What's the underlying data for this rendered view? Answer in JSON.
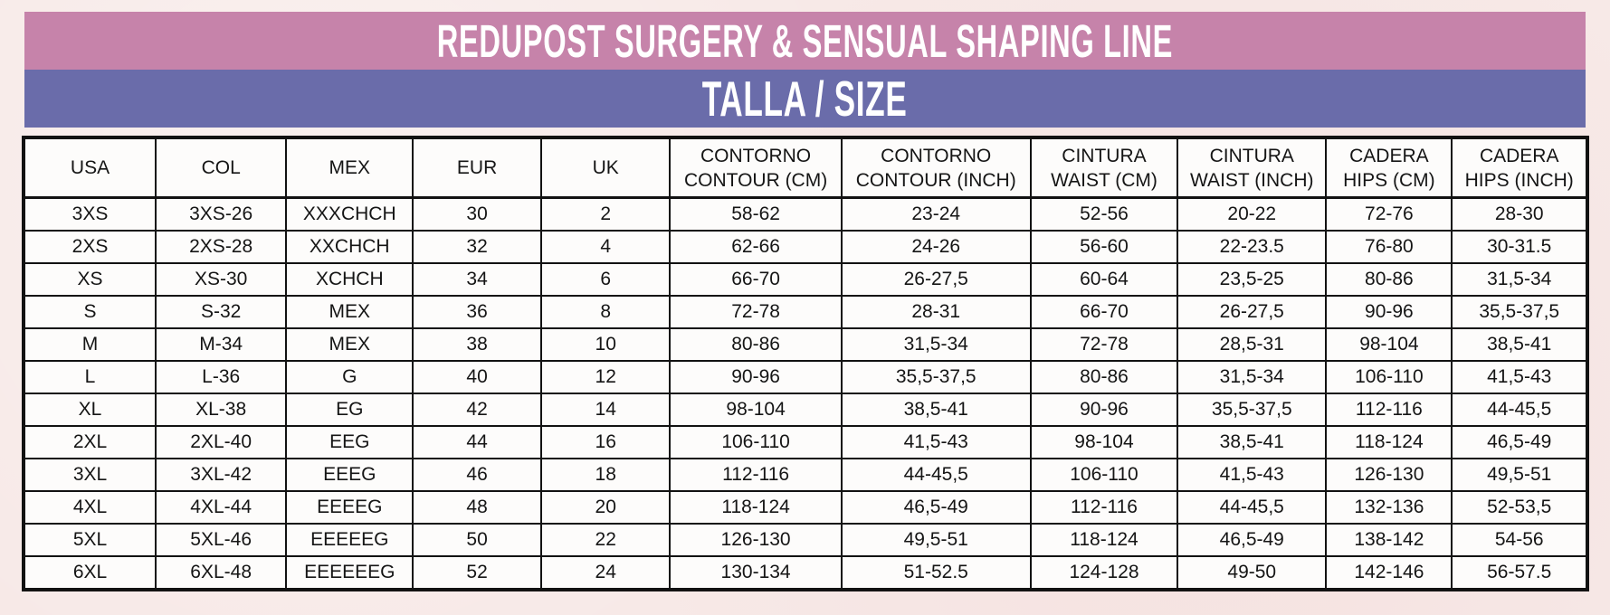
{
  "banner": {
    "title": "REDUPOST SURGERY & SENSUAL SHAPING LINE",
    "subtitle": "TALLA / SIZE"
  },
  "colors": {
    "title_band": "#c683aa",
    "subtitle_band": "#6a6caa",
    "banner_text": "#ffffff",
    "page_background": "#f7e9e7",
    "table_border": "#121212",
    "cell_background": "#fdfcfb"
  },
  "table": {
    "headers": [
      {
        "lines": [
          "USA"
        ]
      },
      {
        "lines": [
          "COL"
        ]
      },
      {
        "lines": [
          "MEX"
        ]
      },
      {
        "lines": [
          "EUR"
        ]
      },
      {
        "lines": [
          "UK"
        ]
      },
      {
        "lines": [
          "CONTORNO",
          "CONTOUR (CM)"
        ]
      },
      {
        "lines": [
          "CONTORNO",
          "CONTOUR (INCH)"
        ]
      },
      {
        "lines": [
          "CINTURA",
          "WAIST (CM)"
        ]
      },
      {
        "lines": [
          "CINTURA",
          "WAIST (INCH)"
        ]
      },
      {
        "lines": [
          "CADERA",
          "HIPS (CM)"
        ]
      },
      {
        "lines": [
          "CADERA",
          "HIPS (INCH)"
        ]
      }
    ],
    "rows": [
      [
        "3XS",
        "3XS-26",
        "XXXCHCH",
        "30",
        "2",
        "58-62",
        "23-24",
        "52-56",
        "20-22",
        "72-76",
        "28-30"
      ],
      [
        "2XS",
        "2XS-28",
        "XXCHCH",
        "32",
        "4",
        "62-66",
        "24-26",
        "56-60",
        "22-23.5",
        "76-80",
        "30-31.5"
      ],
      [
        "XS",
        "XS-30",
        "XCHCH",
        "34",
        "6",
        "66-70",
        "26-27,5",
        "60-64",
        "23,5-25",
        "80-86",
        "31,5-34"
      ],
      [
        "S",
        "S-32",
        "MEX",
        "36",
        "8",
        "72-78",
        "28-31",
        "66-70",
        "26-27,5",
        "90-96",
        "35,5-37,5"
      ],
      [
        "M",
        "M-34",
        "MEX",
        "38",
        "10",
        "80-86",
        "31,5-34",
        "72-78",
        "28,5-31",
        "98-104",
        "38,5-41"
      ],
      [
        "L",
        "L-36",
        "G",
        "40",
        "12",
        "90-96",
        "35,5-37,5",
        "80-86",
        "31,5-34",
        "106-110",
        "41,5-43"
      ],
      [
        "XL",
        "XL-38",
        "EG",
        "42",
        "14",
        "98-104",
        "38,5-41",
        "90-96",
        "35,5-37,5",
        "112-116",
        "44-45,5"
      ],
      [
        "2XL",
        "2XL-40",
        "EEG",
        "44",
        "16",
        "106-110",
        "41,5-43",
        "98-104",
        "38,5-41",
        "118-124",
        "46,5-49"
      ],
      [
        "3XL",
        "3XL-42",
        "EEEG",
        "46",
        "18",
        "112-116",
        "44-45,5",
        "106-110",
        "41,5-43",
        "126-130",
        "49,5-51"
      ],
      [
        "4XL",
        "4XL-44",
        "EEEEG",
        "48",
        "20",
        "118-124",
        "46,5-49",
        "112-116",
        "44-45,5",
        "132-136",
        "52-53,5"
      ],
      [
        "5XL",
        "5XL-46",
        "EEEEEG",
        "50",
        "22",
        "126-130",
        "49,5-51",
        "118-124",
        "46,5-49",
        "138-142",
        "54-56"
      ],
      [
        "6XL",
        "6XL-48",
        "EEEEEEG",
        "52",
        "24",
        "130-134",
        "51-52.5",
        "124-128",
        "49-50",
        "142-146",
        "56-57.5"
      ]
    ]
  }
}
